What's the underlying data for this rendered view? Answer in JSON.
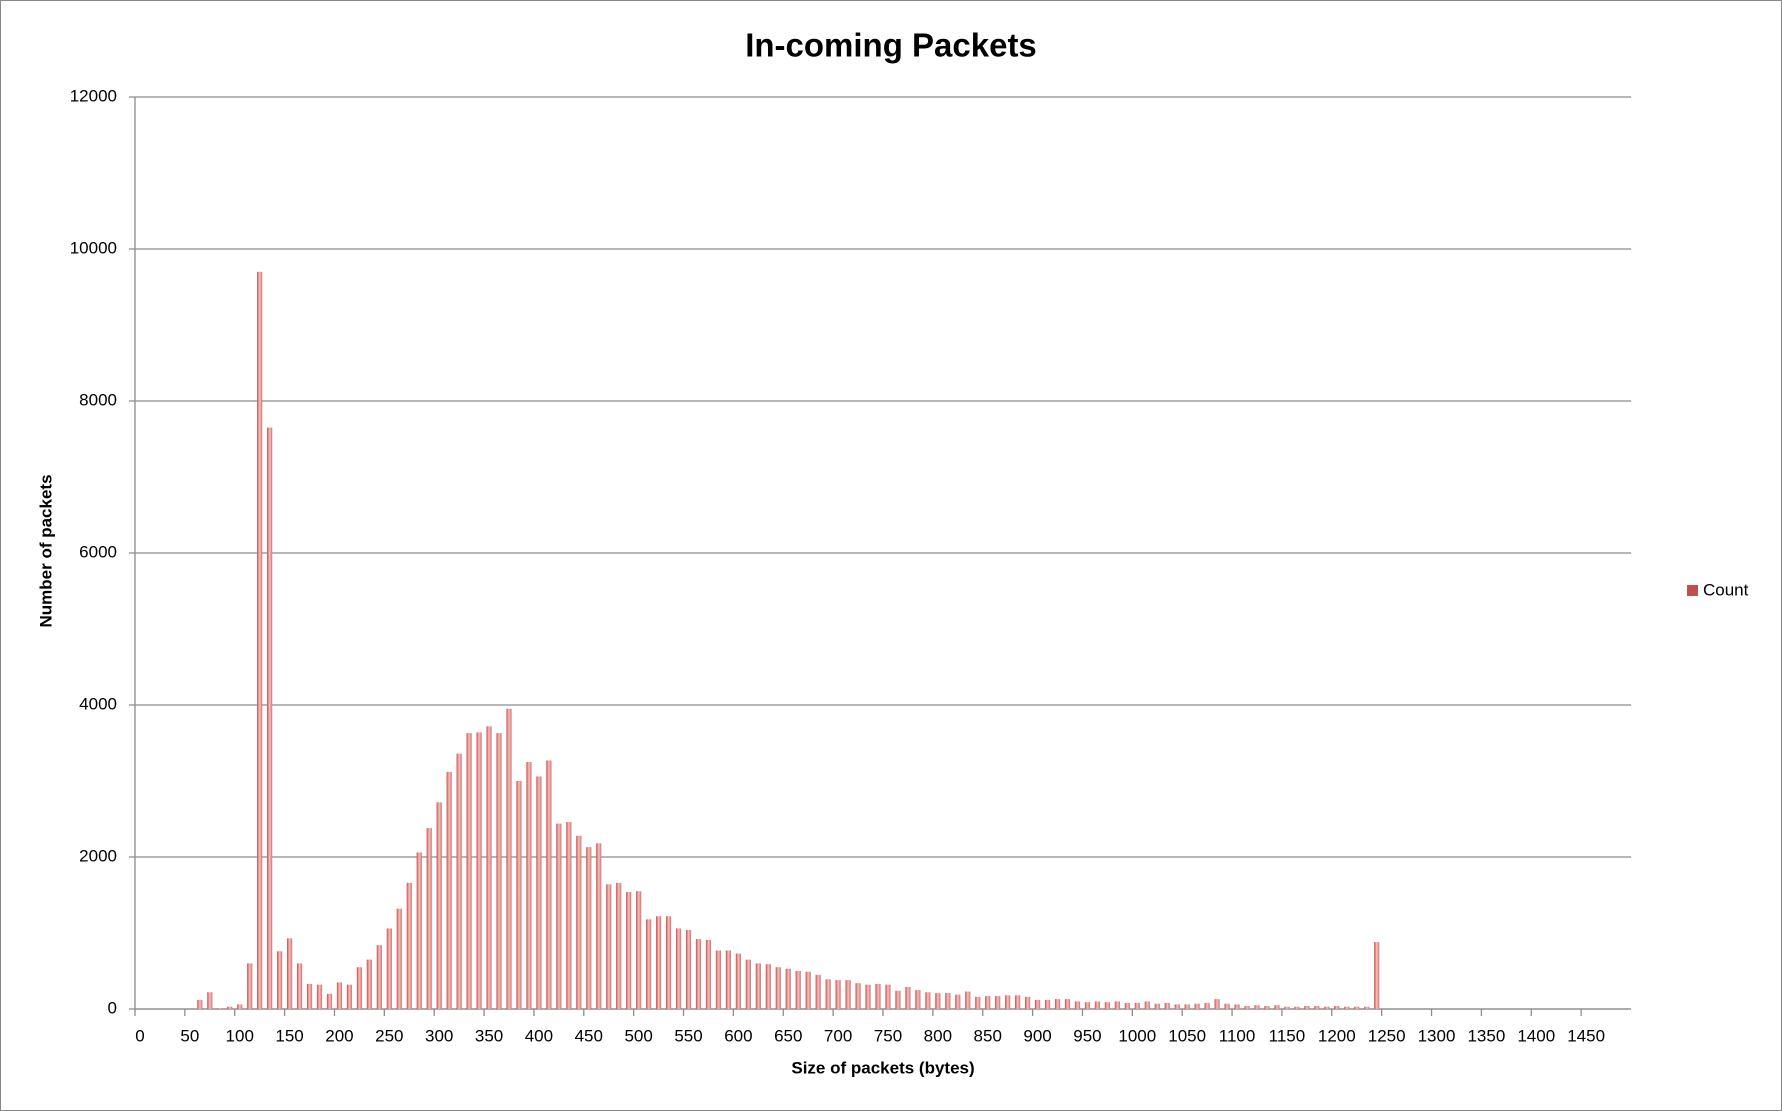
{
  "chart_data": {
    "type": "bar",
    "title": "In-coming Packets",
    "x_label": "Size of packets (bytes)",
    "y_label": "Number of packets",
    "categories": [
      "0",
      null,
      null,
      null,
      null,
      "50",
      null,
      null,
      null,
      null,
      "100",
      null,
      null,
      null,
      null,
      "150",
      null,
      null,
      null,
      null,
      "200",
      null,
      null,
      null,
      null,
      "250",
      null,
      null,
      null,
      null,
      "300",
      null,
      null,
      null,
      null,
      "350",
      null,
      null,
      null,
      null,
      "400",
      null,
      null,
      null,
      null,
      "450",
      null,
      null,
      null,
      null,
      "500",
      null,
      null,
      null,
      null,
      "550",
      null,
      null,
      null,
      null,
      "600",
      null,
      null,
      null,
      null,
      "650",
      null,
      null,
      null,
      null,
      "700",
      null,
      null,
      null,
      null,
      "750",
      null,
      null,
      null,
      null,
      "800",
      null,
      null,
      null,
      null,
      "850",
      null,
      null,
      null,
      null,
      "900",
      null,
      null,
      null,
      null,
      "950",
      null,
      null,
      null,
      null,
      "1000",
      null,
      null,
      null,
      null,
      "1050",
      null,
      null,
      null,
      null,
      "1100",
      null,
      null,
      null,
      null,
      "1150",
      null,
      null,
      null,
      null,
      "1200",
      null,
      null,
      null,
      null,
      "1250",
      null,
      null,
      null,
      null,
      "1300",
      null,
      null,
      null,
      null,
      "1350",
      null,
      null,
      null,
      null,
      "1400",
      null,
      null,
      null,
      null,
      "1450",
      null,
      null,
      null,
      null
    ],
    "series": [
      {
        "name": "Count",
        "color": "#c0504d",
        "values": [
          0,
          0,
          0,
          0,
          0,
          0,
          120,
          220,
          10,
          30,
          60,
          600,
          9700,
          7650,
          760,
          930,
          600,
          330,
          320,
          200,
          350,
          320,
          550,
          650,
          840,
          1060,
          1320,
          1660,
          2060,
          2380,
          2720,
          3120,
          3360,
          3630,
          3640,
          3720,
          3630,
          3950,
          3000,
          3250,
          3060,
          3270,
          2440,
          2460,
          2280,
          2130,
          2180,
          1640,
          1660,
          1540,
          1550,
          1180,
          1220,
          1220,
          1060,
          1040,
          920,
          910,
          770,
          770,
          730,
          650,
          600,
          590,
          550,
          530,
          500,
          490,
          450,
          390,
          380,
          380,
          340,
          320,
          330,
          320,
          240,
          290,
          250,
          220,
          210,
          210,
          190,
          230,
          160,
          170,
          170,
          180,
          180,
          160,
          120,
          120,
          130,
          130,
          100,
          90,
          100,
          90,
          100,
          80,
          80,
          100,
          70,
          80,
          60,
          60,
          70,
          80,
          130,
          70,
          60,
          40,
          50,
          40,
          50,
          30,
          30,
          40,
          40,
          30,
          40,
          30,
          30,
          30,
          880,
          0,
          0,
          0,
          0,
          0,
          0,
          0,
          0,
          0,
          0,
          0,
          0,
          0,
          0,
          0,
          0,
          0,
          0,
          0,
          0,
          0,
          0,
          0,
          0,
          0
        ]
      }
    ],
    "ylim": [
      0,
      12000
    ],
    "yticks": [
      0,
      2000,
      4000,
      6000,
      8000,
      10000,
      12000
    ],
    "grid": true,
    "legend": "right"
  }
}
